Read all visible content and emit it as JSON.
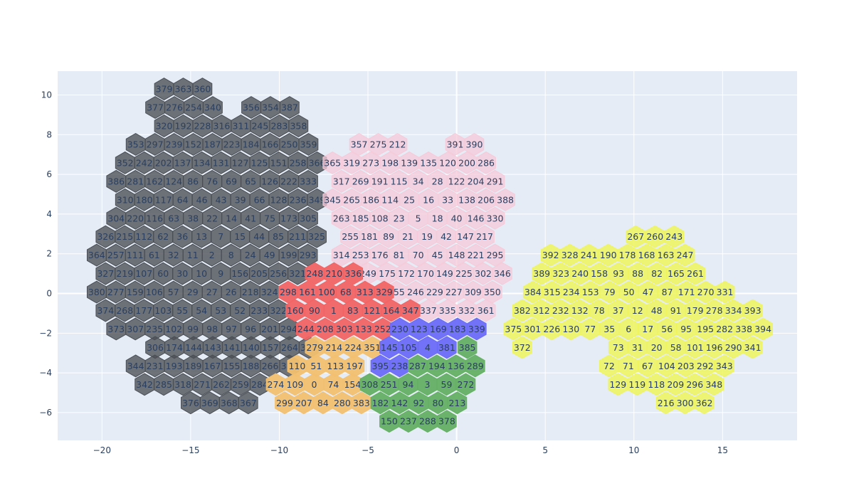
{
  "chart_data": {
    "type": "heatmap",
    "title": "",
    "xlabel": "",
    "ylabel": "",
    "xlim": [
      -22.5,
      19.2
    ],
    "ylim": [
      -7.4,
      11.2
    ],
    "x_ticks": [
      -20,
      -15,
      -10,
      -5,
      0,
      5,
      10,
      15
    ],
    "y_ticks": [
      -6,
      -4,
      -2,
      0,
      2,
      4,
      6,
      8,
      10
    ],
    "tick_text": {
      "x": [
        "−20",
        "−15",
        "−10",
        "−5",
        "0",
        "5",
        "10",
        "15"
      ],
      "y": [
        "−6",
        "−4",
        "−2",
        "0",
        "2",
        "4",
        "6",
        "8",
        "10"
      ]
    },
    "grid": true,
    "legend": "none",
    "hex_step_x": 1.083,
    "plot_background": "#e5ecf6",
    "series": [
      {
        "color": "#4a4e55",
        "opacity": 0.78,
        "rows": [
          {
            "y": 10.3,
            "x": -16.5,
            "labels": [
              379,
              363,
              360
            ]
          },
          {
            "y": 9.37,
            "x": -17.0,
            "labels": [
              377,
              276,
              254,
              340,
              null,
              356,
              354,
              387
            ]
          },
          {
            "y": 8.44,
            "x": -16.5,
            "labels": [
              320,
              192,
              228,
              316,
              311,
              245,
              283,
              358
            ]
          },
          {
            "y": 7.51,
            "x": -18.1,
            "labels": [
              353,
              297,
              239,
              152,
              187,
              223,
              184,
              166,
              250,
              359
            ]
          },
          {
            "y": 6.58,
            "x": -18.7,
            "labels": [
              352,
              242,
              202,
              137,
              134,
              131,
              127,
              125,
              151,
              258,
              366
            ]
          },
          {
            "y": 5.65,
            "x": -19.2,
            "labels": [
              386,
              281,
              162,
              124,
              86,
              76,
              69,
              65,
              126,
              222,
              333
            ]
          },
          {
            "y": 4.72,
            "x": -18.7,
            "labels": [
              310,
              180,
              117,
              64,
              46,
              43,
              39,
              66,
              128,
              236,
              349
            ]
          },
          {
            "y": 3.79,
            "x": -19.2,
            "labels": [
              304,
              220,
              116,
              63,
              38,
              22,
              14,
              41,
              75,
              173,
              305
            ]
          },
          {
            "y": 2.86,
            "x": -19.8,
            "labels": [
              326,
              215,
              112,
              62,
              36,
              13,
              7,
              15,
              44,
              85,
              211,
              325
            ]
          },
          {
            "y": 1.93,
            "x": -20.3,
            "labels": [
              364,
              257,
              111,
              61,
              32,
              11,
              2,
              8,
              24,
              49,
              199,
              293
            ]
          },
          {
            "y": 1.0,
            "x": -19.8,
            "labels": [
              327,
              219,
              107,
              60,
              30,
              10,
              9,
              156,
              205,
              256,
              321
            ]
          },
          {
            "y": 0.07,
            "x": -20.3,
            "labels": [
              380,
              277,
              159,
              106,
              57,
              29,
              27,
              26,
              218,
              324
            ]
          },
          {
            "y": -0.86,
            "x": -19.8,
            "labels": [
              374,
              268,
              177,
              103,
              55,
              54,
              53,
              52,
              233,
              322
            ]
          },
          {
            "y": -1.79,
            "x": -19.2,
            "labels": [
              373,
              307,
              235,
              102,
              99,
              98,
              97,
              96,
              201,
              294
            ]
          },
          {
            "y": -2.72,
            "x": -17.0,
            "labels": [
              306,
              174,
              144,
              143,
              141,
              140,
              157,
              264,
              370
            ]
          },
          {
            "y": -3.65,
            "x": -18.1,
            "labels": [
              344,
              231,
              193,
              189,
              167,
              155,
              188,
              266,
              371
            ]
          },
          {
            "y": -4.58,
            "x": -17.6,
            "labels": [
              342,
              285,
              318,
              271,
              262,
              259,
              284
            ]
          },
          {
            "y": -5.51,
            "x": -15.0,
            "labels": [
              376,
              369,
              368,
              367
            ]
          }
        ]
      },
      {
        "color": "#f6cad8",
        "opacity": 0.75,
        "rows": [
          {
            "y": 7.51,
            "x": -5.5,
            "labels": [
              357,
              275,
              212,
              null,
              null,
              391,
              390
            ]
          },
          {
            "y": 6.58,
            "x": -7.0,
            "labels": [
              365,
              319,
              273,
              198,
              139,
              135,
              120,
              200,
              286
            ]
          },
          {
            "y": 5.65,
            "x": -6.5,
            "labels": [
              317,
              269,
              191,
              115,
              34,
              28,
              122,
              204,
              291
            ]
          },
          {
            "y": 4.72,
            "x": -7.0,
            "labels": [
              345,
              265,
              186,
              114,
              25,
              16,
              33,
              138,
              206,
              388
            ]
          },
          {
            "y": 3.79,
            "x": -6.5,
            "labels": [
              263,
              185,
              108,
              23,
              5,
              18,
              40,
              146,
              330
            ]
          },
          {
            "y": 2.86,
            "x": -6.0,
            "labels": [
              255,
              181,
              89,
              21,
              19,
              42,
              147,
              217
            ]
          },
          {
            "y": 1.93,
            "x": -6.5,
            "labels": [
              314,
              253,
              176,
              81,
              70,
              45,
              148,
              221,
              295
            ]
          },
          {
            "y": 1.0,
            "x": -5.0,
            "labels": [
              249,
              175,
              172,
              170,
              149,
              225,
              302,
              346
            ]
          },
          {
            "y": 0.07,
            "x": -3.4,
            "labels": [
              355,
              246,
              229,
              227,
              309,
              350
            ]
          },
          {
            "y": -0.86,
            "x": -1.6,
            "labels": [
              337,
              335,
              332,
              361
            ]
          }
        ]
      },
      {
        "color": "#f26464",
        "opacity": 0.95,
        "rows": [
          {
            "y": 1.0,
            "x": -8.0,
            "labels": [
              248,
              210,
              336
            ]
          },
          {
            "y": 0.07,
            "x": -9.5,
            "labels": [
              298,
              161,
              100,
              68,
              313,
              329
            ]
          },
          {
            "y": -0.86,
            "x": -9.1,
            "labels": [
              160,
              90,
              1,
              83,
              121,
              164,
              347
            ]
          },
          {
            "y": -1.79,
            "x": -8.5,
            "labels": [
              244,
              208,
              303,
              133,
              252
            ]
          }
        ]
      },
      {
        "color": "#f2c070",
        "opacity": 0.95,
        "rows": [
          {
            "y": -2.72,
            "x": -8.0,
            "labels": [
              279,
              214,
              224,
              351
            ]
          },
          {
            "y": -3.65,
            "x": -9.0,
            "labels": [
              110,
              51,
              113,
              197
            ]
          },
          {
            "y": -4.58,
            "x": -10.2,
            "labels": [
              274,
              109,
              0,
              74,
              154
            ]
          },
          {
            "y": -5.51,
            "x": -9.7,
            "labels": [
              299,
              207,
              84,
              280,
              383
            ]
          }
        ]
      },
      {
        "color": "#6b6bf8",
        "opacity": 0.95,
        "rows": [
          {
            "y": -1.79,
            "x": -3.2,
            "labels": [
              230,
              123,
              169,
              183,
              339
            ]
          },
          {
            "y": -2.72,
            "x": -3.8,
            "labels": [
              145,
              105,
              4,
              381
            ]
          },
          {
            "y": -3.65,
            "x": -4.3,
            "labels": [
              395,
              238
            ]
          }
        ]
      },
      {
        "color": "#64b064",
        "opacity": 0.95,
        "rows": [
          {
            "y": -2.72,
            "x": 0.6,
            "labels": [
              385
            ]
          },
          {
            "y": -3.65,
            "x": -2.2,
            "labels": [
              287,
              194,
              136,
              289
            ]
          },
          {
            "y": -4.58,
            "x": -4.9,
            "labels": [
              308,
              251,
              94,
              3,
              59,
              272
            ]
          },
          {
            "y": -5.51,
            "x": -4.3,
            "labels": [
              182,
              142,
              92,
              80,
              213
            ]
          },
          {
            "y": -6.44,
            "x": -3.8,
            "labels": [
              150,
              237,
              288,
              378
            ]
          }
        ]
      },
      {
        "color": "#eef55c",
        "opacity": 0.85,
        "rows": [
          {
            "y": 2.86,
            "x": 10.1,
            "labels": [
              267,
              260,
              243
            ]
          },
          {
            "y": 1.93,
            "x": 5.3,
            "labels": [
              392,
              328,
              241,
              190,
              178,
              168,
              163,
              247
            ]
          },
          {
            "y": 1.0,
            "x": 4.8,
            "labels": [
              389,
              323,
              240,
              158,
              93,
              88,
              82,
              165,
              261
            ]
          },
          {
            "y": 0.07,
            "x": 4.3,
            "labels": [
              384,
              315,
              234,
              153,
              79,
              50,
              47,
              87,
              171,
              270,
              331
            ]
          },
          {
            "y": -0.86,
            "x": 3.7,
            "labels": [
              382,
              312,
              232,
              132,
              78,
              37,
              12,
              48,
              91,
              179,
              278,
              334,
              393
            ]
          },
          {
            "y": -1.79,
            "x": 3.2,
            "labels": [
              375,
              301,
              226,
              130,
              77,
              35,
              6,
              17,
              56,
              95,
              195,
              282,
              338,
              394
            ]
          },
          {
            "y": -2.72,
            "x": 3.7,
            "labels": [
              372,
              null,
              null,
              null,
              null,
              73,
              31,
              20,
              58,
              101,
              196,
              290,
              341
            ]
          },
          {
            "y": -3.65,
            "x": 8.6,
            "labels": [
              72,
              71,
              67,
              104,
              203,
              292,
              343
            ]
          },
          {
            "y": -4.58,
            "x": 9.1,
            "labels": [
              129,
              119,
              118,
              209,
              296,
              348
            ]
          },
          {
            "y": -5.51,
            "x": 11.8,
            "labels": [
              216,
              300,
              362
            ]
          }
        ]
      }
    ]
  }
}
